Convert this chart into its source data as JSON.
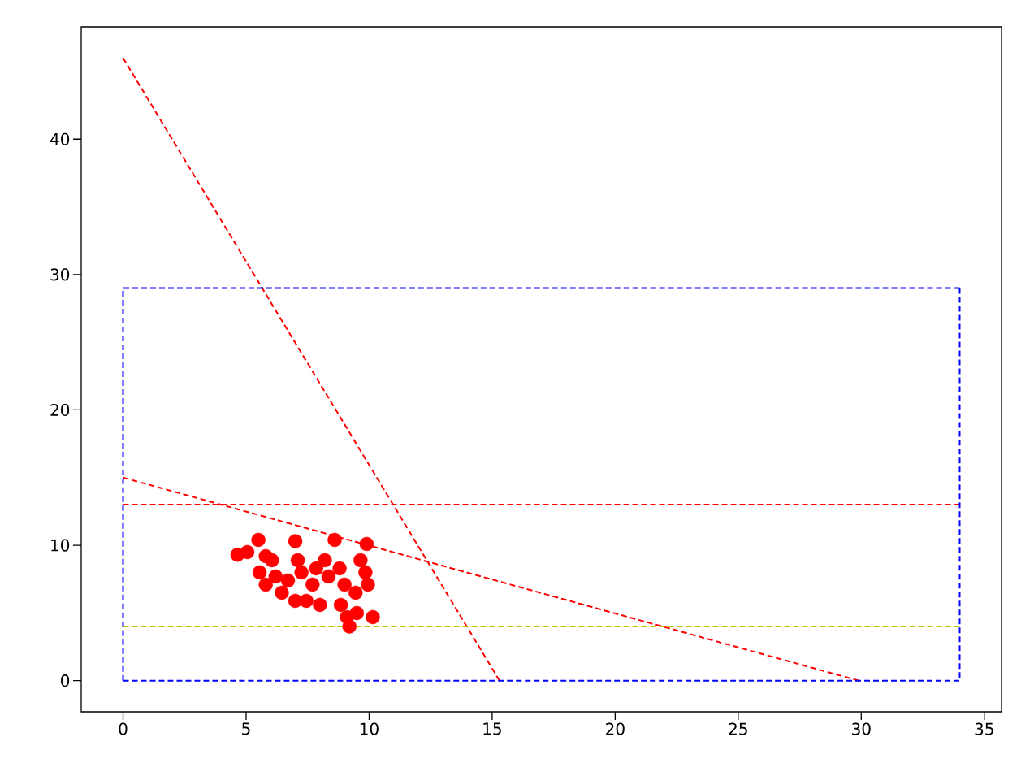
{
  "chart_data": {
    "type": "line",
    "xlim": [
      -1.7,
      35.7
    ],
    "ylim": [
      -2.3,
      48.3
    ],
    "xticks": [
      0,
      5,
      10,
      15,
      20,
      25,
      30,
      35
    ],
    "yticks": [
      0,
      10,
      20,
      30,
      40
    ],
    "line_style": "dashed",
    "series": [
      {
        "color": "#ff0000",
        "x": [
          0,
          15.3
        ],
        "values": [
          46,
          0
        ]
      },
      {
        "color": "#ff0000",
        "x": [
          0,
          29.9
        ],
        "values": [
          15,
          0
        ]
      },
      {
        "color": "#ff0000",
        "x": [
          0,
          34
        ],
        "values": [
          13,
          13
        ]
      },
      {
        "color": "#bfbf00",
        "x": [
          0,
          34
        ],
        "values": [
          4,
          4
        ]
      },
      {
        "color": "#0000ff",
        "x": [
          0,
          34,
          34
        ],
        "values": [
          0,
          0,
          29
        ]
      },
      {
        "color": "#0000ff",
        "x": [
          34,
          0,
          0
        ],
        "values": [
          29,
          29,
          0
        ]
      },
      {
        "type": "scatter",
        "marker": "circle",
        "color": "#ff0000",
        "x": [
          4.65,
          5.05,
          5.5,
          5.8,
          6.05,
          5.55,
          5.8,
          6.2,
          6.45,
          6.7,
          7.0,
          7.1,
          7.25,
          7.0,
          7.45,
          7.7,
          7.85,
          8.0,
          8.2,
          8.35,
          8.6,
          8.8,
          9.0,
          8.85,
          9.1,
          9.2,
          9.5,
          9.65,
          9.85,
          9.95,
          9.9,
          10.0,
          10.15,
          9.45
        ],
        "values": [
          9.3,
          9.5,
          10.4,
          9.2,
          8.9,
          8.0,
          7.1,
          7.7,
          6.5,
          7.4,
          10.3,
          8.9,
          8.0,
          5.9,
          5.9,
          7.1,
          8.3,
          5.6,
          8.9,
          7.7,
          10.4,
          8.3,
          7.1,
          5.6,
          4.7,
          4.0,
          5.0,
          8.9,
          8.0,
          7.1,
          10.1,
          null,
          4.7,
          6.5
        ]
      }
    ]
  }
}
